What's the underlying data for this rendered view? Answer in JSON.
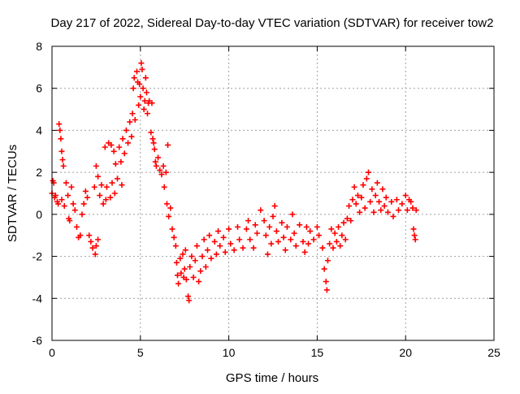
{
  "chart_data": {
    "type": "scatter",
    "title": "Day 217 of 2022, Sidereal Day-to-day VTEC variation (SDTVAR) for receiver tow2",
    "xlabel": "GPS time / hours",
    "ylabel": "SDTVAR / TECUs",
    "xlim": [
      0,
      25
    ],
    "ylim": [
      -6,
      8
    ],
    "xticks": [
      0,
      5,
      10,
      15,
      20,
      25
    ],
    "xtick_labels": [
      "0",
      "5",
      "10",
      "15",
      "20",
      "25"
    ],
    "yticks": [
      -6,
      -4,
      -2,
      0,
      2,
      4,
      6,
      8
    ],
    "ytick_labels": [
      "-6",
      "-4",
      "-2",
      "0",
      "2",
      "4",
      "6",
      "8"
    ],
    "grid": true,
    "marker": "+",
    "colors": {
      "series": "#ff0000",
      "grid": "#a0a0a0",
      "frame": "#000000"
    },
    "series": [
      {
        "name": "SDTVAR",
        "points": [
          [
            0.0,
            1.0
          ],
          [
            0.05,
            1.6
          ],
          [
            0.1,
            1.5
          ],
          [
            0.15,
            0.8
          ],
          [
            0.2,
            0.9
          ],
          [
            0.3,
            0.6
          ],
          [
            0.35,
            0.5
          ],
          [
            0.4,
            4.3
          ],
          [
            0.45,
            4.0
          ],
          [
            0.5,
            3.6
          ],
          [
            0.55,
            3.0
          ],
          [
            0.6,
            2.6
          ],
          [
            0.65,
            2.3
          ],
          [
            0.55,
            0.7
          ],
          [
            0.7,
            0.4
          ],
          [
            0.8,
            1.5
          ],
          [
            0.9,
            0.9
          ],
          [
            0.95,
            -0.2
          ],
          [
            1.0,
            -0.3
          ],
          [
            1.1,
            1.3
          ],
          [
            1.2,
            0.5
          ],
          [
            1.3,
            0.2
          ],
          [
            1.4,
            -0.6
          ],
          [
            1.5,
            -1.1
          ],
          [
            1.6,
            -1.0
          ],
          [
            1.7,
            0.0
          ],
          [
            1.8,
            0.5
          ],
          [
            1.9,
            1.1
          ],
          [
            2.0,
            0.8
          ],
          [
            2.1,
            -1.0
          ],
          [
            2.2,
            -1.3
          ],
          [
            2.3,
            -1.6
          ],
          [
            2.4,
            1.3
          ],
          [
            2.45,
            -1.9
          ],
          [
            2.5,
            -1.5
          ],
          [
            2.6,
            -1.2
          ],
          [
            2.5,
            2.3
          ],
          [
            2.6,
            1.8
          ],
          [
            2.7,
            0.9
          ],
          [
            2.8,
            1.4
          ],
          [
            2.9,
            0.5
          ],
          [
            3.0,
            3.2
          ],
          [
            3.05,
            0.7
          ],
          [
            3.1,
            1.3
          ],
          [
            3.2,
            3.4
          ],
          [
            3.3,
            0.8
          ],
          [
            3.35,
            3.3
          ],
          [
            3.4,
            1.5
          ],
          [
            3.5,
            3.0
          ],
          [
            3.55,
            1.0
          ],
          [
            3.6,
            2.4
          ],
          [
            3.7,
            1.7
          ],
          [
            3.8,
            3.2
          ],
          [
            3.9,
            2.5
          ],
          [
            3.95,
            1.4
          ],
          [
            4.0,
            3.6
          ],
          [
            4.1,
            2.9
          ],
          [
            4.2,
            4.0
          ],
          [
            4.3,
            3.4
          ],
          [
            4.4,
            4.4
          ],
          [
            4.5,
            3.7
          ],
          [
            4.55,
            4.8
          ],
          [
            4.6,
            6.0
          ],
          [
            4.65,
            6.5
          ],
          [
            4.7,
            4.5
          ],
          [
            4.8,
            6.8
          ],
          [
            4.85,
            6.3
          ],
          [
            4.9,
            5.2
          ],
          [
            4.95,
            6.2
          ],
          [
            5.0,
            5.6
          ],
          [
            5.05,
            7.2
          ],
          [
            5.1,
            6.9
          ],
          [
            5.15,
            6.0
          ],
          [
            5.2,
            5.0
          ],
          [
            5.25,
            5.4
          ],
          [
            5.3,
            6.5
          ],
          [
            5.35,
            5.8
          ],
          [
            5.4,
            4.8
          ],
          [
            5.45,
            5.3
          ],
          [
            5.5,
            5.4
          ],
          [
            5.6,
            3.9
          ],
          [
            5.65,
            5.3
          ],
          [
            5.7,
            3.6
          ],
          [
            5.75,
            3.4
          ],
          [
            5.8,
            3.1
          ],
          [
            5.85,
            2.5
          ],
          [
            5.9,
            2.3
          ],
          [
            6.0,
            2.7
          ],
          [
            6.1,
            2.1
          ],
          [
            6.2,
            1.9
          ],
          [
            6.3,
            2.3
          ],
          [
            6.35,
            1.3
          ],
          [
            6.45,
            2.0
          ],
          [
            6.55,
            3.3
          ],
          [
            6.5,
            0.5
          ],
          [
            6.6,
            -0.1
          ],
          [
            6.7,
            0.3
          ],
          [
            6.8,
            -0.7
          ],
          [
            6.9,
            -1.1
          ],
          [
            7.0,
            -1.5
          ],
          [
            7.05,
            -2.3
          ],
          [
            7.1,
            -2.9
          ],
          [
            7.15,
            -3.3
          ],
          [
            7.25,
            -2.1
          ],
          [
            7.3,
            -2.8
          ],
          [
            7.4,
            -1.9
          ],
          [
            7.45,
            -3.0
          ],
          [
            7.5,
            -2.6
          ],
          [
            7.55,
            -1.7
          ],
          [
            7.6,
            -3.1
          ],
          [
            7.7,
            -3.9
          ],
          [
            7.75,
            -4.1
          ],
          [
            7.8,
            -2.5
          ],
          [
            7.9,
            -2.0
          ],
          [
            8.0,
            -3.0
          ],
          [
            8.1,
            -2.2
          ],
          [
            8.2,
            -1.5
          ],
          [
            8.3,
            -3.2
          ],
          [
            8.4,
            -2.7
          ],
          [
            8.5,
            -2.0
          ],
          [
            8.6,
            -1.2
          ],
          [
            8.7,
            -2.5
          ],
          [
            8.8,
            -1.7
          ],
          [
            8.9,
            -1.0
          ],
          [
            9.0,
            -2.1
          ],
          [
            9.2,
            -1.3
          ],
          [
            9.3,
            -1.9
          ],
          [
            9.4,
            -0.8
          ],
          [
            9.5,
            -1.5
          ],
          [
            9.7,
            -1.1
          ],
          [
            9.8,
            -1.8
          ],
          [
            10.0,
            -0.7
          ],
          [
            10.1,
            -1.4
          ],
          [
            10.3,
            -1.7
          ],
          [
            10.5,
            -0.6
          ],
          [
            10.6,
            -1.2
          ],
          [
            10.8,
            -1.6
          ],
          [
            11.0,
            -0.7
          ],
          [
            11.1,
            -0.3
          ],
          [
            11.2,
            -1.2
          ],
          [
            11.4,
            -1.6
          ],
          [
            11.5,
            -0.5
          ],
          [
            11.6,
            -0.9
          ],
          [
            11.8,
            0.2
          ],
          [
            12.0,
            -0.3
          ],
          [
            12.1,
            -1.0
          ],
          [
            12.2,
            -1.9
          ],
          [
            12.3,
            -0.6
          ],
          [
            12.4,
            -1.4
          ],
          [
            12.5,
            -0.1
          ],
          [
            12.6,
            0.4
          ],
          [
            12.7,
            -0.8
          ],
          [
            12.8,
            -1.3
          ],
          [
            13.0,
            -0.4
          ],
          [
            13.1,
            -1.1
          ],
          [
            13.2,
            -1.7
          ],
          [
            13.3,
            -0.6
          ],
          [
            13.5,
            -1.2
          ],
          [
            13.6,
            0.0
          ],
          [
            13.7,
            -0.9
          ],
          [
            13.8,
            -1.5
          ],
          [
            14.0,
            -0.5
          ],
          [
            14.2,
            -1.3
          ],
          [
            14.3,
            -1.8
          ],
          [
            14.4,
            -0.6
          ],
          [
            14.5,
            -1.4
          ],
          [
            14.6,
            -0.8
          ],
          [
            14.8,
            -1.2
          ],
          [
            15.0,
            -0.6
          ],
          [
            15.1,
            -1.0
          ],
          [
            15.3,
            -1.6
          ],
          [
            15.4,
            -2.6
          ],
          [
            15.5,
            -3.2
          ],
          [
            15.55,
            -3.6
          ],
          [
            15.6,
            -2.2
          ],
          [
            15.7,
            -1.4
          ],
          [
            15.8,
            -0.7
          ],
          [
            15.9,
            -1.6
          ],
          [
            16.0,
            -0.9
          ],
          [
            16.1,
            -1.3
          ],
          [
            16.2,
            -0.6
          ],
          [
            16.3,
            -1.5
          ],
          [
            16.4,
            -1.0
          ],
          [
            16.5,
            -0.4
          ],
          [
            16.6,
            -1.2
          ],
          [
            16.7,
            -0.2
          ],
          [
            16.8,
            0.4
          ],
          [
            16.9,
            -0.3
          ],
          [
            17.0,
            0.7
          ],
          [
            17.1,
            1.3
          ],
          [
            17.2,
            0.5
          ],
          [
            17.3,
            0.9
          ],
          [
            17.4,
            0.1
          ],
          [
            17.5,
            0.8
          ],
          [
            17.6,
            1.4
          ],
          [
            17.7,
            0.3
          ],
          [
            17.8,
            1.7
          ],
          [
            17.9,
            2.0
          ],
          [
            18.0,
            0.6
          ],
          [
            18.1,
            1.2
          ],
          [
            18.2,
            0.1
          ],
          [
            18.3,
            0.9
          ],
          [
            18.4,
            1.5
          ],
          [
            18.5,
            0.6
          ],
          [
            18.6,
            0.2
          ],
          [
            18.7,
            1.2
          ],
          [
            18.8,
            0.4
          ],
          [
            18.9,
            0.8
          ],
          [
            19.0,
            0.1
          ],
          [
            19.2,
            0.6
          ],
          [
            19.3,
            -0.1
          ],
          [
            19.5,
            0.7
          ],
          [
            19.6,
            0.2
          ],
          [
            19.8,
            0.5
          ],
          [
            20.0,
            0.9
          ],
          [
            20.1,
            0.2
          ],
          [
            20.2,
            0.7
          ],
          [
            20.3,
            0.6
          ],
          [
            20.4,
            0.3
          ],
          [
            20.45,
            -0.7
          ],
          [
            20.5,
            -1.0
          ],
          [
            20.55,
            -1.2
          ],
          [
            20.6,
            0.2
          ]
        ]
      }
    ]
  }
}
